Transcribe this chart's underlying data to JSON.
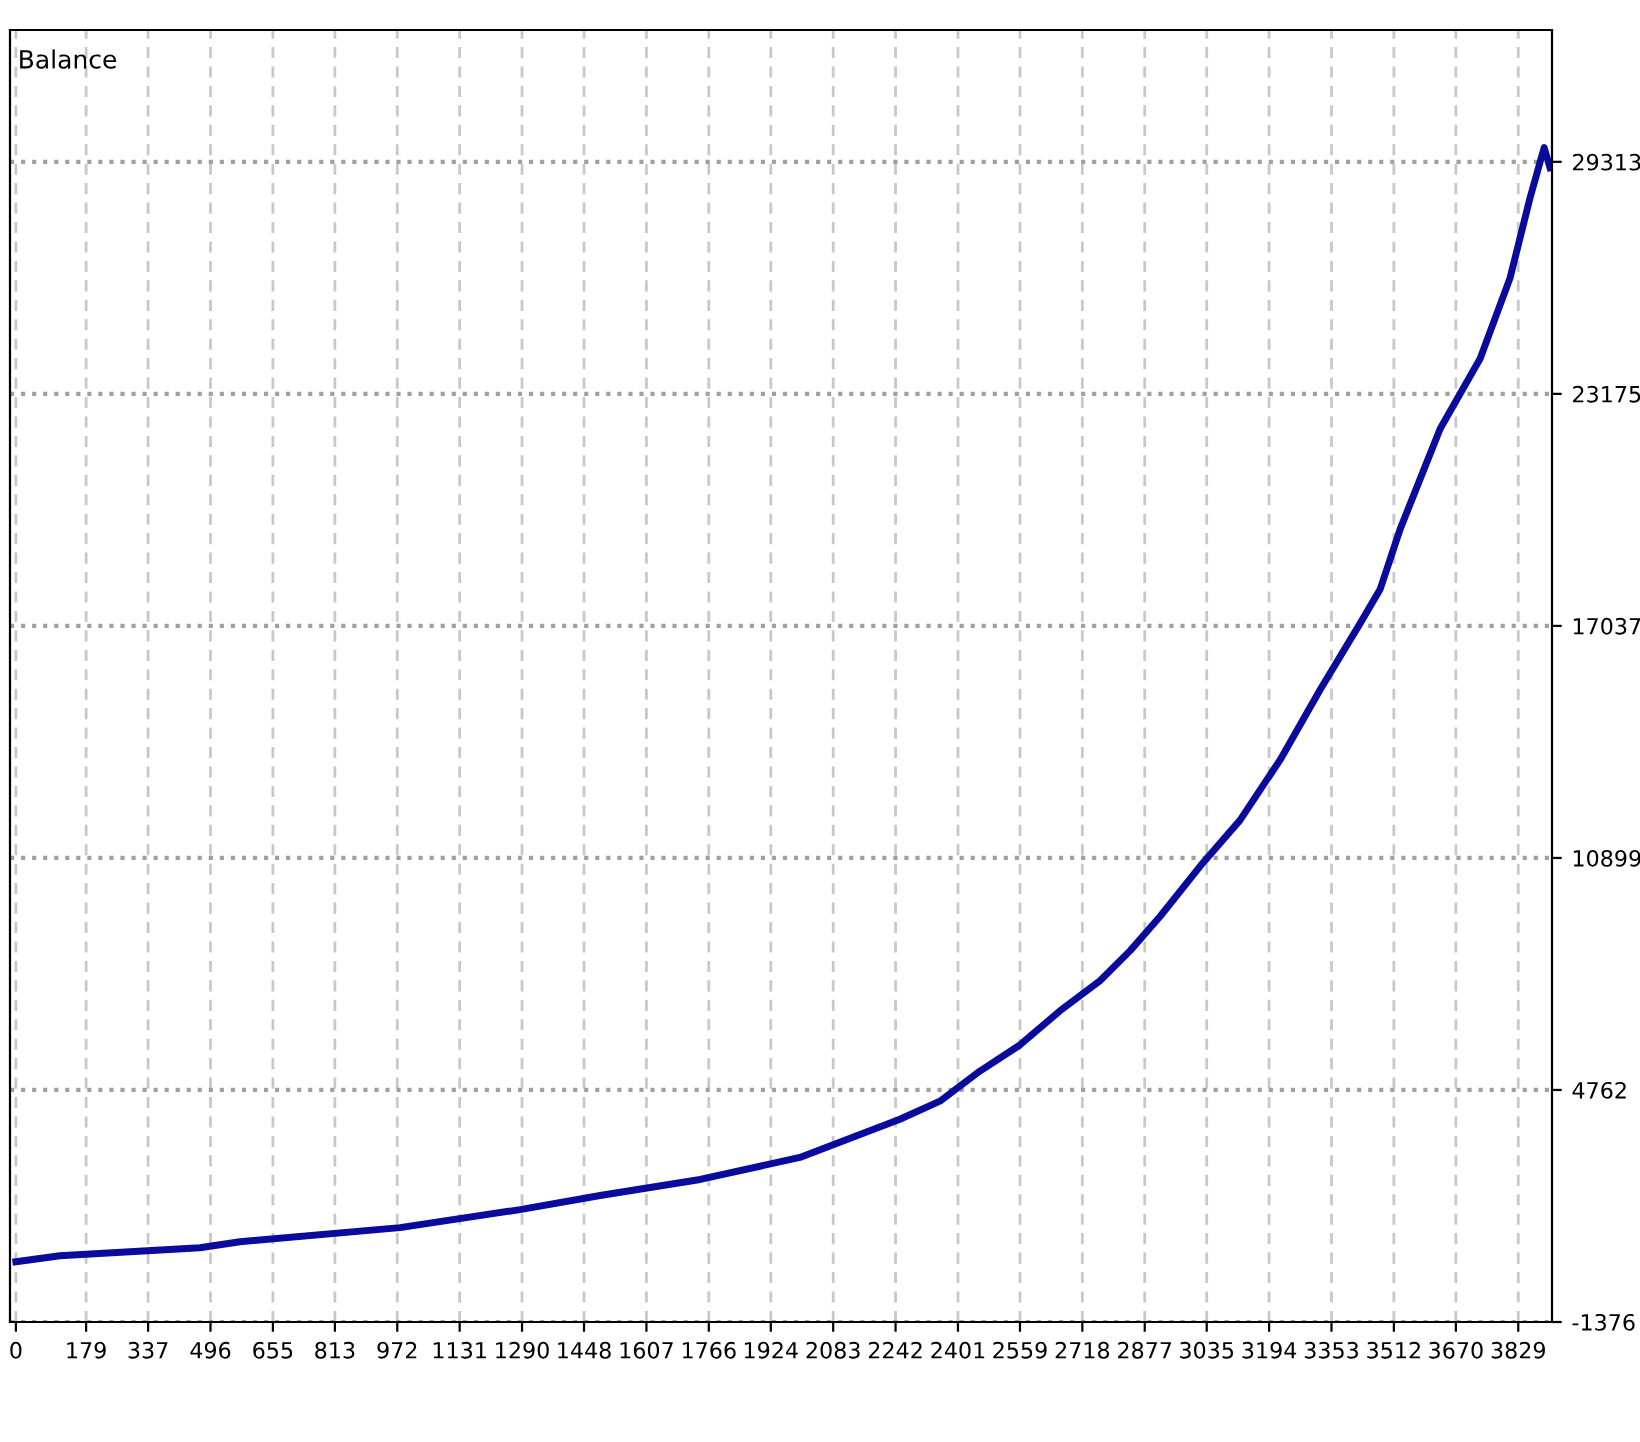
{
  "chart_data": {
    "type": "line",
    "annotations": [
      "Balance"
    ],
    "x": [
      0,
      112,
      469,
      571,
      979,
      1285,
      1489,
      1744,
      1998,
      2253,
      2355,
      2457,
      2559,
      2661,
      2763,
      2840,
      2916,
      3018,
      3120,
      3222,
      3324,
      3426,
      3477,
      3528,
      3579,
      3630,
      3732,
      3808,
      3859,
      3895,
      3910
    ],
    "series": [
      {
        "color": "#0a0a9c",
        "values": [
          217,
          376,
          589,
          748,
          1120,
          1598,
          1969,
          2394,
          2978,
          3987,
          4465,
          5261,
          5952,
          6855,
          7651,
          8448,
          9350,
          10678,
          11899,
          13492,
          15350,
          17103,
          18006,
          19598,
          20926,
          22254,
          24112,
          26236,
          28360,
          29688,
          29157
        ]
      }
    ],
    "xlim": [
      -15,
      3915
    ],
    "xticks": [
      0,
      179,
      337,
      496,
      655,
      813,
      972,
      1131,
      1290,
      1448,
      1607,
      1766,
      1924,
      2083,
      2242,
      2401,
      2559,
      2718,
      2877,
      3035,
      3194,
      3353,
      3512,
      3670,
      3829
    ],
    "ylim": [
      -1376,
      32800
    ],
    "yticks": [
      -1376,
      4762,
      10899,
      17037,
      23175,
      29313
    ],
    "grid": true,
    "line_style": "solid",
    "marker": "none",
    "legend": false
  }
}
